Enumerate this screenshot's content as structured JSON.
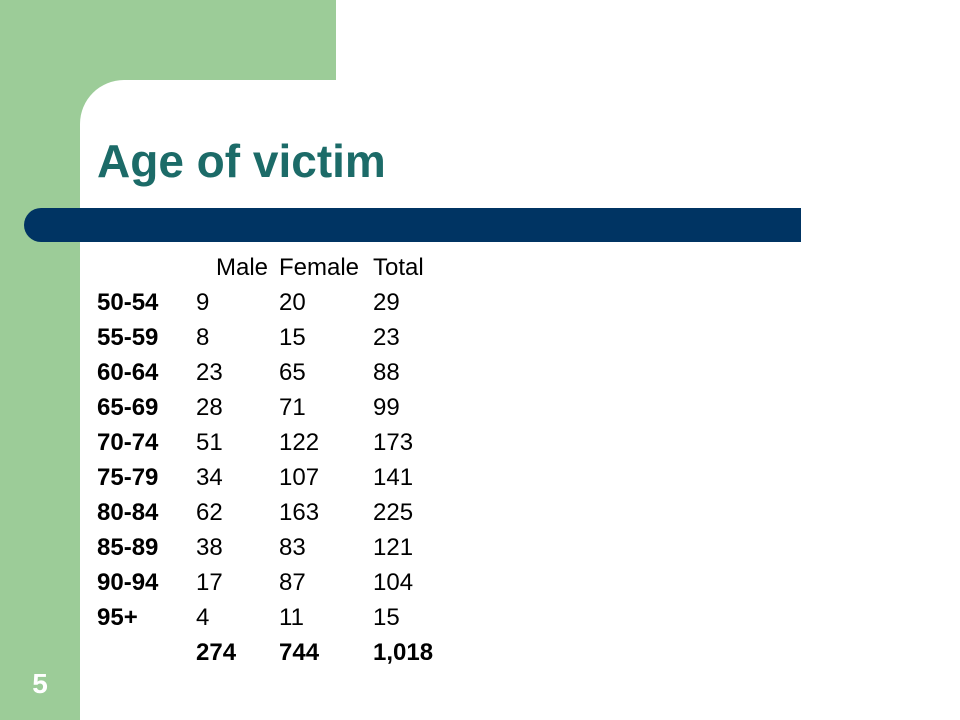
{
  "slide": {
    "title": "Age of victim",
    "number": "5"
  },
  "table": {
    "headers": [
      "Male",
      "Female",
      "Total"
    ],
    "rows": [
      {
        "age": "50-54",
        "male": "9",
        "female": "20",
        "total": "29"
      },
      {
        "age": "55-59",
        "male": "8",
        "female": "15",
        "total": "23"
      },
      {
        "age": "60-64",
        "male": "23",
        "female": "65",
        "total": "88"
      },
      {
        "age": "65-69",
        "male": "28",
        "female": "71",
        "total": "99"
      },
      {
        "age": "70-74",
        "male": "51",
        "female": "122",
        "total": "173"
      },
      {
        "age": "75-79",
        "male": "34",
        "female": "107",
        "total": "141"
      },
      {
        "age": "80-84",
        "male": "62",
        "female": "163",
        "total": "225"
      },
      {
        "age": "85-89",
        "male": "38",
        "female": "83",
        "total": "121"
      },
      {
        "age": "90-94",
        "male": "17",
        "female": "87",
        "total": "104"
      },
      {
        "age": "95+",
        "male": "4",
        "female": "11",
        "total": "15"
      }
    ],
    "totals": {
      "male": "274",
      "female": "744",
      "total": "1,018"
    }
  },
  "colors": {
    "green_block": "#9ccc98",
    "title_text": "#1c6b68",
    "title_bar": "#003463"
  }
}
